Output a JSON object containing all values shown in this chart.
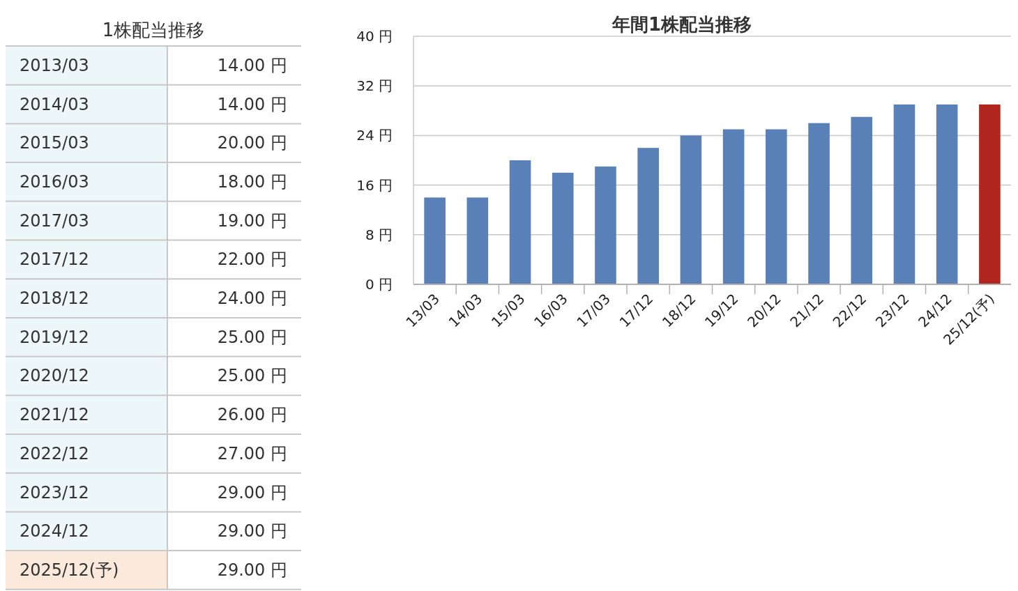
{
  "chart_data": [
    {
      "type": "other",
      "title": "1株配当推移",
      "categories": [
        "2013/03",
        "2014/03",
        "2015/03",
        "2016/03",
        "2017/03",
        "2017/12",
        "2018/12",
        "2019/12",
        "2020/12",
        "2021/12",
        "2022/12",
        "2023/12",
        "2024/12",
        "2025/12(予)"
      ],
      "value_labels": [
        "14.00 円",
        "14.00 円",
        "20.00 円",
        "18.00 円",
        "19.00 円",
        "22.00 円",
        "24.00 円",
        "25.00 円",
        "25.00 円",
        "26.00 円",
        "27.00 円",
        "29.00 円",
        "29.00 円",
        "29.00 円"
      ],
      "colors": [
        "#edf6f8",
        "#edf6f8",
        "#edf6f8",
        "#edf6f8",
        "#edf6f8",
        "#edf6f8",
        "#edf6f8",
        "#edf6f8",
        "#edf6f8",
        "#edf6f8",
        "#edf6f8",
        "#edf6f8",
        "#edf6f8",
        "#fbeadb"
      ]
    },
    {
      "type": "bar",
      "title": "年間1株配当推移",
      "categories": [
        "13/03",
        "14/03",
        "15/03",
        "16/03",
        "17/03",
        "17/12",
        "18/12",
        "19/12",
        "20/12",
        "21/12",
        "22/12",
        "23/12",
        "24/12",
        "25/12(予)"
      ],
      "values": [
        14,
        14,
        20,
        18,
        19,
        22,
        24,
        25,
        25,
        26,
        27,
        29,
        29,
        29
      ],
      "colors": [
        "#5a80b8",
        "#5a80b8",
        "#5a80b8",
        "#5a80b8",
        "#5a80b8",
        "#5a80b8",
        "#5a80b8",
        "#5a80b8",
        "#5a80b8",
        "#5a80b8",
        "#5a80b8",
        "#5a80b8",
        "#5a80b8",
        "#b0261e"
      ],
      "ylim": [
        0,
        40
      ],
      "yticks": [
        {
          "value": 0,
          "label": "0 円"
        },
        {
          "value": 8,
          "label": "8 円"
        },
        {
          "value": 16,
          "label": "16 円"
        },
        {
          "value": 24,
          "label": "24 円"
        },
        {
          "value": 32,
          "label": "32 円"
        },
        {
          "value": 40,
          "label": "40 円"
        }
      ],
      "grid": "y"
    }
  ]
}
